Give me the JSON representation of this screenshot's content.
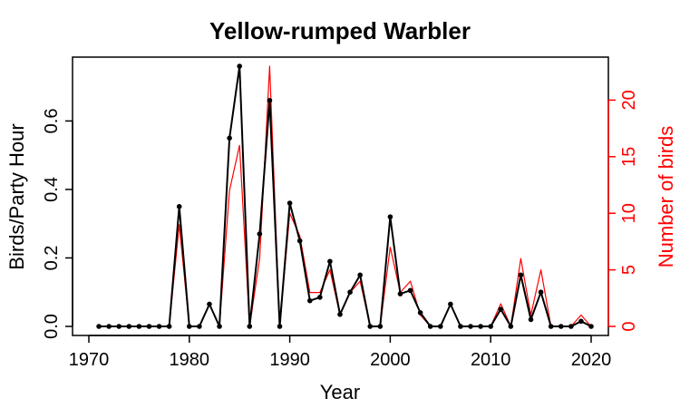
{
  "chart_data": {
    "type": "line",
    "title": "Yellow-rumped Warbler",
    "xlabel": "Year",
    "ylabel": "Birds/Party Hour",
    "ylabel_right": "Number of birds",
    "xlim": [
      1970,
      2020
    ],
    "ylim": [
      0,
      0.76
    ],
    "ylim_right": [
      0,
      23
    ],
    "x_ticks": [
      1970,
      1980,
      1990,
      2000,
      2010,
      2020
    ],
    "y_ticks": [
      0.0,
      0.2,
      0.4,
      0.6
    ],
    "y_tick_labels": [
      "0.0",
      "0.2",
      "0.4",
      "0.6"
    ],
    "y_right_ticks": [
      0,
      5,
      10,
      15,
      20
    ],
    "grid": false,
    "legend": false,
    "colors": {
      "birds_per_party_hour": "#000000",
      "number_of_birds": "#ff0000"
    },
    "x": [
      1971,
      1972,
      1973,
      1974,
      1975,
      1976,
      1977,
      1978,
      1979,
      1980,
      1981,
      1982,
      1983,
      1984,
      1985,
      1986,
      1987,
      1988,
      1989,
      1990,
      1991,
      1992,
      1993,
      1994,
      1995,
      1996,
      1997,
      1998,
      1999,
      2000,
      2001,
      2002,
      2003,
      2004,
      2005,
      2006,
      2007,
      2008,
      2009,
      2010,
      2011,
      2012,
      2013,
      2014,
      2015,
      2016,
      2017,
      2018,
      2019,
      2020
    ],
    "series": [
      {
        "axis": "left",
        "values": [
          0,
          0,
          0,
          0,
          0,
          0,
          0,
          0,
          0.35,
          0,
          0,
          0.065,
          0,
          0.55,
          0.76,
          0,
          0.27,
          0.66,
          0,
          0.36,
          0.25,
          0.075,
          0.085,
          0.19,
          0.035,
          0.1,
          0.15,
          0,
          0,
          0.32,
          0.095,
          0.105,
          0.04,
          0,
          0,
          0.065,
          0,
          0,
          0,
          0,
          0.05,
          0,
          0.15,
          0.02,
          0.1,
          0,
          0,
          0,
          0.015,
          0
        ],
        "markers": true
      },
      {
        "axis": "right",
        "values": [
          0,
          0,
          0,
          0,
          0,
          0,
          0,
          0,
          9,
          0,
          0,
          2,
          0,
          12,
          16,
          0,
          6,
          23,
          0,
          10,
          8,
          3,
          3,
          5,
          1,
          3,
          4,
          0,
          0,
          7,
          3,
          4,
          1,
          0,
          0,
          2,
          0,
          0,
          0,
          0,
          2,
          0,
          6,
          1,
          5,
          0,
          0,
          0,
          1,
          0
        ],
        "markers": false
      }
    ]
  }
}
